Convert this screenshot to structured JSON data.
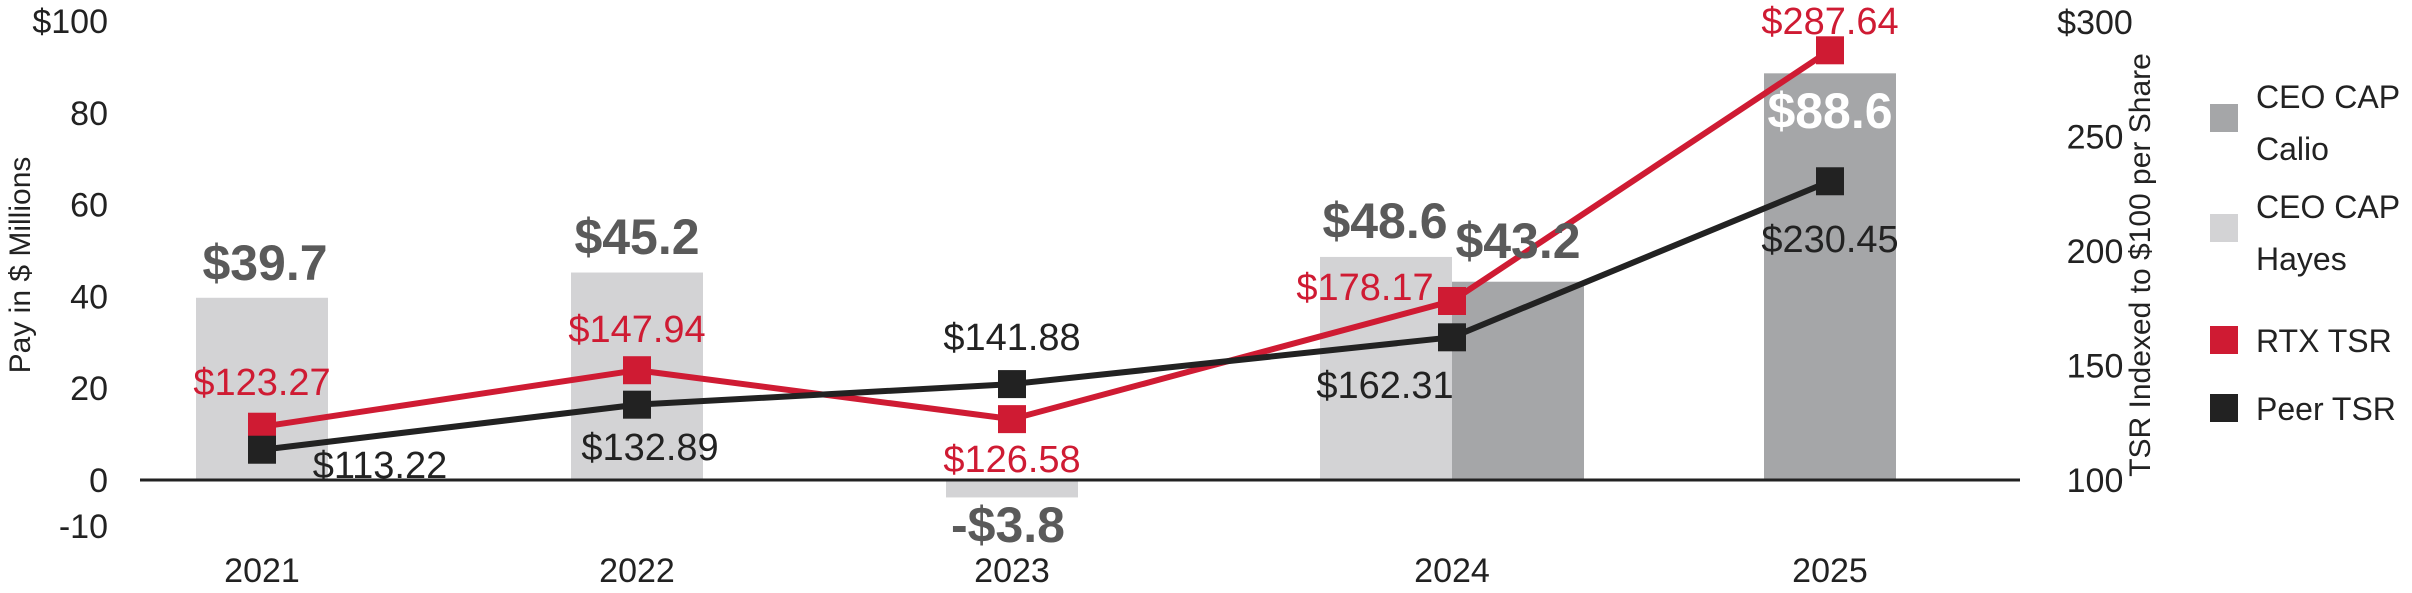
{
  "chart_data": {
    "type": "bar",
    "categories": [
      "2021",
      "2022",
      "2023",
      "2024",
      "2025"
    ],
    "y_left": {
      "label": "Pay in $ Millions",
      "ylim": [
        -10,
        100
      ],
      "ticks": [
        {
          "value": 100,
          "label": "$100"
        },
        {
          "value": 80,
          "label": "80"
        },
        {
          "value": 60,
          "label": "60"
        },
        {
          "value": 40,
          "label": "40"
        },
        {
          "value": 20,
          "label": "20"
        },
        {
          "value": 0,
          "label": "0"
        },
        {
          "value": -10,
          "label": "-10"
        }
      ]
    },
    "y_right": {
      "label": "TSR Indexed to $100 per Share",
      "ylim": [
        100,
        300
      ],
      "ticks": [
        {
          "value": 300,
          "label": "$300"
        },
        {
          "value": 250,
          "label": "250"
        },
        {
          "value": 200,
          "label": "200"
        },
        {
          "value": 150,
          "label": "150"
        },
        {
          "value": 100,
          "label": "100"
        }
      ]
    },
    "bar_series": [
      {
        "name": "CEO CAP Hayes",
        "color": "#d3d3d5",
        "values": [
          39.7,
          45.2,
          -3.8,
          48.6,
          null
        ],
        "labels": [
          "$39.7",
          "$45.2",
          "-$3.8",
          "$48.6",
          ""
        ]
      },
      {
        "name": "CEO CAP Calio",
        "color": "#a5a6a8",
        "values": [
          null,
          null,
          null,
          43.2,
          88.6
        ],
        "labels": [
          "",
          "",
          "",
          "$43.2",
          "$88.6"
        ]
      }
    ],
    "line_series": [
      {
        "name": "RTX TSR",
        "color": "#cf1b33",
        "values": [
          123.27,
          147.94,
          126.58,
          178.17,
          287.64
        ],
        "labels": [
          "$123.27",
          "$147.94",
          "$126.58",
          "$178.17",
          "$287.64"
        ]
      },
      {
        "name": "Peer TSR",
        "color": "#222222",
        "values": [
          113.22,
          132.89,
          141.88,
          162.31,
          230.45
        ],
        "labels": [
          "$113.22",
          "$132.89",
          "$141.88",
          "$162.31",
          "$230.45"
        ]
      }
    ],
    "legend": {
      "position": "right",
      "entries": [
        {
          "lines": [
            "CEO CAP",
            "Calio"
          ],
          "color": "#a5a6a8",
          "icon": "square"
        },
        {
          "lines": [
            "CEO CAP",
            "Hayes"
          ],
          "color": "#d3d3d5",
          "icon": "square"
        },
        {
          "lines": [
            "RTX TSR"
          ],
          "color": "#cf1b33",
          "icon": "square"
        },
        {
          "lines": [
            "Peer TSR"
          ],
          "color": "#222222",
          "icon": "square"
        }
      ]
    },
    "grid": false
  }
}
